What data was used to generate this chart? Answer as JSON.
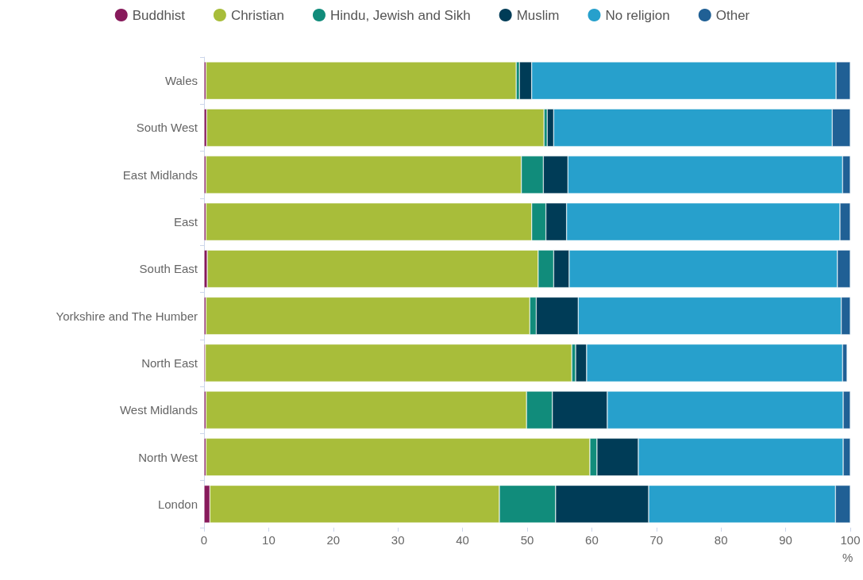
{
  "chart_data": {
    "type": "bar",
    "orientation": "horizontal",
    "stacked": true,
    "xlabel": "%",
    "legend": "top",
    "grid": false,
    "categories": [
      "Wales",
      "South West",
      "East Midlands",
      "East",
      "South East",
      "Yorkshire and The Humber",
      "North East",
      "West Midlands",
      "North West",
      "London"
    ],
    "xlim": [
      0,
      100
    ],
    "xticks": [
      0,
      10,
      20,
      30,
      40,
      50,
      60,
      70,
      80,
      90,
      100
    ],
    "series": [
      {
        "name": "Buddhist",
        "color": "#871a5b",
        "values": [
          0.3,
          0.4,
          0.3,
          0.3,
          0.5,
          0.3,
          0.2,
          0.3,
          0.3,
          0.9
        ]
      },
      {
        "name": "Christian",
        "color": "#a8bd3a",
        "values": [
          48.0,
          52.2,
          48.8,
          50.4,
          51.2,
          50.1,
          56.7,
          49.6,
          59.4,
          44.8
        ]
      },
      {
        "name": "Hindu, Jewish and Sikh",
        "color": "#118c7b",
        "values": [
          0.5,
          0.5,
          3.4,
          2.2,
          2.4,
          1.0,
          0.6,
          4.0,
          1.1,
          8.7
        ]
      },
      {
        "name": "Muslim",
        "color": "#003c57",
        "values": [
          1.9,
          1.0,
          3.8,
          3.2,
          2.4,
          6.5,
          1.7,
          8.5,
          6.4,
          14.4
        ]
      },
      {
        "name": "No religion",
        "color": "#27a0cc",
        "values": [
          47.1,
          43.1,
          42.5,
          42.3,
          41.5,
          40.7,
          39.6,
          36.5,
          31.7,
          28.9
        ]
      },
      {
        "name": "Other",
        "color": "#206095",
        "values": [
          2.2,
          2.8,
          1.2,
          1.6,
          2.0,
          1.4,
          0.7,
          1.1,
          1.1,
          2.3
        ]
      }
    ]
  }
}
